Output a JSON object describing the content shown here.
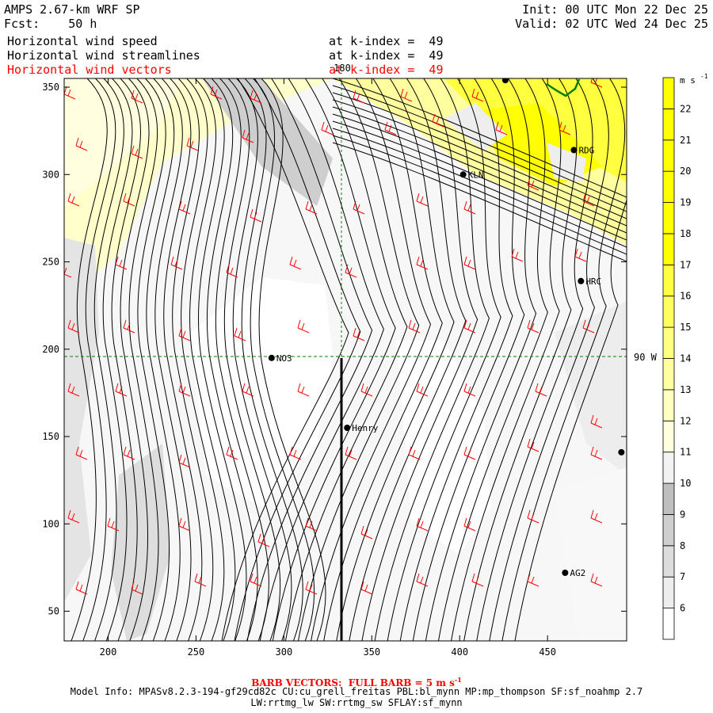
{
  "header": {
    "model_title": "AMPS 2.67-km WRF SP",
    "forecast": "Fcst:    50 h",
    "init": "Init: 00 UTC Mon 22 Dec 25",
    "valid": "Valid: 02 UTC Wed 24 Dec 25",
    "fields": [
      {
        "name": "Horizontal wind speed",
        "level": "at k-index =  49",
        "color": "#000000"
      },
      {
        "name": "Horizontal wind streamlines",
        "level": "at k-index =  49",
        "color": "#000000"
      },
      {
        "name": "Horizontal wind vectors",
        "level": "at k-index =  49",
        "color": "#ff0000"
      }
    ]
  },
  "chart_data": {
    "type": "heatmap",
    "x_ticks": [
      200,
      250,
      300,
      350,
      400,
      450
    ],
    "y_ticks": [
      50,
      100,
      150,
      200,
      250,
      300,
      350
    ],
    "xlim": [
      175,
      495
    ],
    "ylim": [
      33,
      355
    ],
    "grid_labels": {
      "top": "180",
      "right": "90 W",
      "grid_x": 331.5,
      "grid_y": 195.5
    },
    "stations": [
      {
        "name": "NO3",
        "x": 293,
        "y": 195
      },
      {
        "name": "Henry",
        "x": 336,
        "y": 155
      },
      {
        "name": "KLN",
        "x": 402,
        "y": 300
      },
      {
        "name": "RDG",
        "x": 465,
        "y": 314
      },
      {
        "name": "HRC",
        "x": 469,
        "y": 239
      },
      {
        "name": "AG2",
        "x": 460,
        "y": 72
      },
      {
        "name": "",
        "x": 492,
        "y": 141
      },
      {
        "name": "",
        "x": 426,
        "y": 354
      }
    ],
    "colorbar": {
      "unit": "m s",
      "unit_exp": "-1",
      "levels": [
        6,
        7,
        8,
        9,
        10,
        11,
        12,
        13,
        14,
        15,
        16,
        17,
        18,
        19,
        20,
        21,
        22
      ],
      "colors": [
        "#ffffff",
        "#ededed",
        "#dddddd",
        "#cecece",
        "#bfbfbf",
        "#f2f2f2",
        "#ffffdd",
        "#ffffc0",
        "#ffff9f",
        "#ffff80",
        "#ffff60",
        "#ffff40",
        "#ffff00",
        "#ffff00",
        "#ffff00",
        "#ffff00",
        "#ffff00",
        "#ffff00"
      ]
    }
  },
  "footer": {
    "barb_label": "BARB VECTORS:  FULL BARB = 5 m s",
    "barb_exp": "-1",
    "model_info": "Model Info: MPASv8.2.3-194-gf29cd82c CU:cu_grell_freitas PBL:bl_mynn MP:mp_thompson SF:sf_noahmp 2.7",
    "model_info2": "LW:rrtmg_lw SW:rrtmg_sw SFLAY:sf_mynn"
  }
}
